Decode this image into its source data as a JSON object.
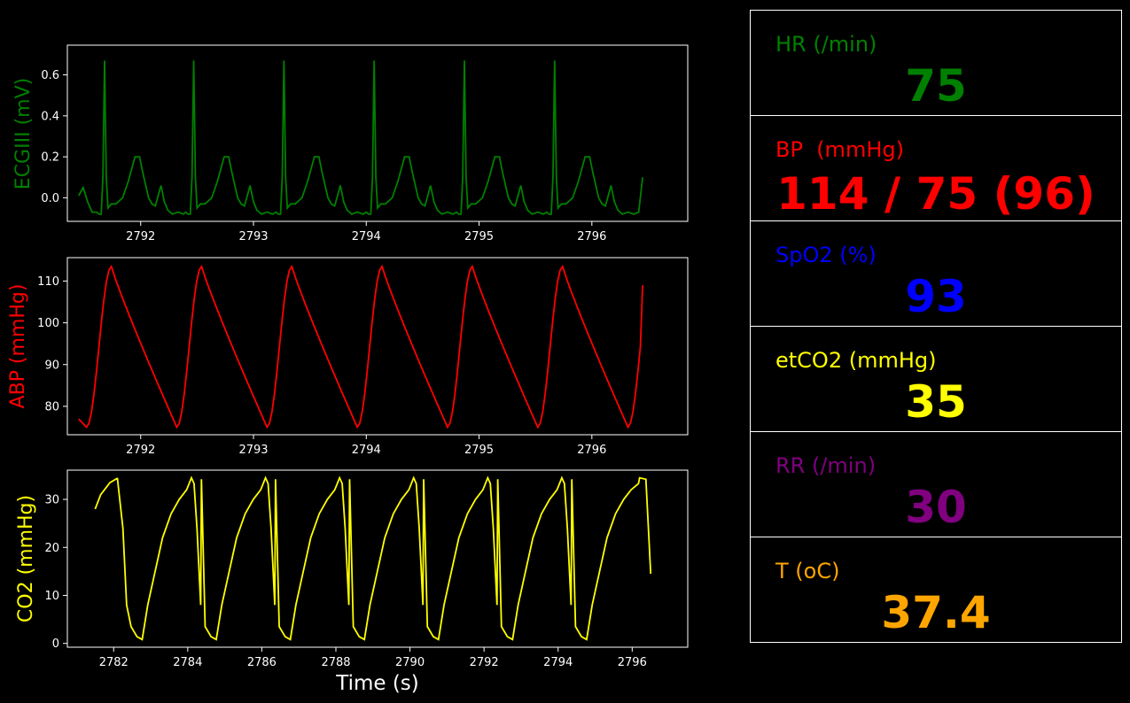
{
  "colors": {
    "background": "#000000",
    "ecg": "#008000",
    "abp": "#ff0000",
    "co2": "#ffff00",
    "spo2": "#0000ff",
    "rr": "#800080",
    "temp": "#ffa500",
    "axes": "#ffffff"
  },
  "chart_data": [
    {
      "type": "line",
      "name": "ecg",
      "ylabel": "ECGIII (mV)",
      "xlim": [
        2791.35,
        2796.85
      ],
      "ylim": [
        -0.115,
        0.745
      ],
      "x_ticks": [
        2792,
        2793,
        2794,
        2795,
        2796
      ],
      "y_ticks": [
        0.0,
        0.2,
        0.4,
        0.6
      ],
      "y_tick_labels": [
        "0.0",
        "0.2",
        "0.4",
        "0.6"
      ],
      "beat_times": [
        2791.68,
        2792.47,
        2793.27,
        2794.07,
        2794.87,
        2795.67
      ],
      "start": 2791.45,
      "end": 2796.45,
      "beat_template": {
        "t": [
          -0.07,
          -0.05,
          -0.03,
          -0.015,
          0.0,
          0.015,
          0.03,
          0.06,
          0.1,
          0.16,
          0.21,
          0.27,
          0.31,
          0.34,
          0.39,
          0.42,
          0.45,
          0.48,
          0.5,
          0.53,
          0.56,
          0.6,
          0.65,
          0.7,
          0.745
        ],
        "v": [
          -0.07,
          -0.08,
          -0.08,
          0.1,
          0.67,
          0.1,
          -0.05,
          -0.03,
          -0.03,
          0.0,
          0.08,
          0.2,
          0.2,
          0.12,
          0.0,
          -0.03,
          -0.04,
          0.02,
          0.06,
          -0.02,
          -0.06,
          -0.08,
          -0.07,
          -0.08,
          -0.07
        ]
      },
      "start_values": [
        0.01,
        0.05,
        -0.02,
        -0.07
      ]
    },
    {
      "type": "line",
      "name": "abp",
      "ylabel": "ABP (mmHg)",
      "xlim": [
        2791.35,
        2796.85
      ],
      "ylim": [
        73.2,
        115.6
      ],
      "x_ticks": [
        2792,
        2793,
        2794,
        2795,
        2796
      ],
      "y_ticks": [
        80,
        90,
        100,
        110
      ],
      "y_tick_labels": [
        "80",
        "90",
        "100",
        "110"
      ],
      "trough_times": [
        2791.52,
        2792.32,
        2793.12,
        2793.92,
        2794.72,
        2795.52,
        2796.32
      ],
      "peak_offset": 0.22,
      "min": 75,
      "max": 113.5,
      "start": 2791.45,
      "end": 2796.45,
      "end_value": 109
    },
    {
      "type": "line",
      "name": "co2",
      "ylabel": "CO2 (mmHg)",
      "xlabel": "Time (s)",
      "xlim": [
        2780.75,
        2797.5
      ],
      "ylim": [
        -0.8,
        36.1
      ],
      "x_ticks": [
        2782,
        2784,
        2786,
        2788,
        2790,
        2792,
        2794,
        2796
      ],
      "y_ticks": [
        0,
        10,
        20,
        30
      ],
      "y_tick_labels": [
        "0",
        "10",
        "20",
        "30"
      ],
      "start": 2781.5,
      "end": 2796.5,
      "period": 2.0,
      "trough_times": [
        2782.85,
        2784.85,
        2786.85,
        2788.85,
        2790.85,
        2792.85,
        2794.85
      ],
      "peak": 34.5,
      "end_value": 14.5
    }
  ],
  "vitals": [
    {
      "label": "HR (/min)",
      "value": "75",
      "color": "#008000"
    },
    {
      "label": "BP  (mmHg)",
      "value": "114 / 75 (96)",
      "color": "#ff0000"
    },
    {
      "label": "SpO2 (%)",
      "value": "93",
      "color": "#0000ff"
    },
    {
      "label": "etCO2 (mmHg)",
      "value": "35",
      "color": "#ffff00"
    },
    {
      "label": "RR (/min)",
      "value": "30",
      "color": "#800080"
    },
    {
      "label": "T (oC)",
      "value": "37.4",
      "color": "#ffa500"
    }
  ]
}
